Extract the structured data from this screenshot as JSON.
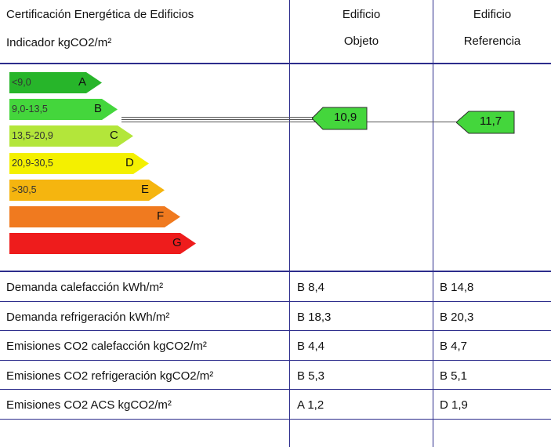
{
  "header": {
    "title": "Certificación Energética de Edificios",
    "subtitle": "Indicador kgCO2/m²",
    "col_objeto_line1": "Edificio",
    "col_objeto_line2": "Objeto",
    "col_referencia_line1": "Edificio",
    "col_referencia_line2": "Referencia"
  },
  "scale": [
    {
      "letter": "A",
      "range": "<9,0",
      "color": "#27b52a"
    },
    {
      "letter": "B",
      "range": "9,0-13,5",
      "color": "#44d63c"
    },
    {
      "letter": "C",
      "range": "13,5-20,9",
      "color": "#b3e63a"
    },
    {
      "letter": "D",
      "range": "20,9-30,5",
      "color": "#f4f000"
    },
    {
      "letter": "E",
      "range": ">30,5",
      "color": "#f5b50f"
    },
    {
      "letter": "F",
      "range": "",
      "color": "#f07a1f"
    },
    {
      "letter": "G",
      "range": "",
      "color": "#ee1c1c"
    }
  ],
  "indicators": {
    "objeto": {
      "value": "10,9",
      "class": "B",
      "color": "#44d63c"
    },
    "referencia": {
      "value": "11,7",
      "class": "B",
      "color": "#44d63c"
    }
  },
  "rows": [
    {
      "label": "Demanda calefacción kWh/m²",
      "objeto": "B 8,4",
      "referencia": "B 14,8"
    },
    {
      "label": "Demanda refrigeración kWh/m²",
      "objeto": "B 18,3",
      "referencia": "B 20,3"
    },
    {
      "label": "Emisiones CO2 calefacción kgCO2/m²",
      "objeto": "B 4,4",
      "referencia": "B 4,7"
    },
    {
      "label": "Emisiones CO2 refrigeración kgCO2/m²",
      "objeto": "B 5,3",
      "referencia": "B 5,1"
    },
    {
      "label": "Emisiones CO2 ACS kgCO2/m²",
      "objeto": "A 1,2",
      "referencia": "D 1,9"
    }
  ]
}
